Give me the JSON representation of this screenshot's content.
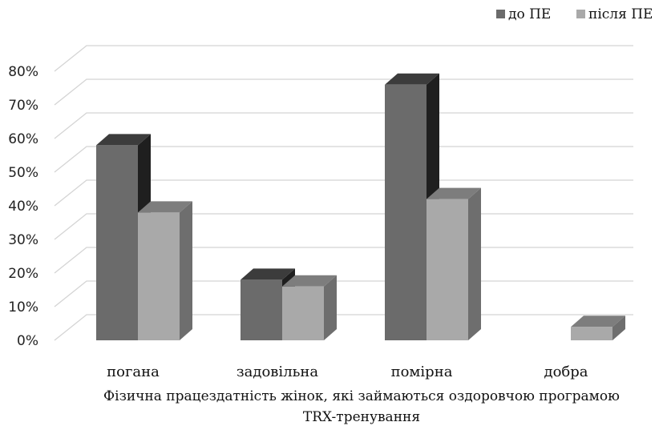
{
  "chart_data": {
    "type": "bar",
    "style": "3d-clustered",
    "categories": [
      "погана",
      "задовільна",
      "помірна",
      "добра"
    ],
    "series": [
      {
        "name": "до ПЕ",
        "values": [
          58,
          18,
          76,
          0
        ],
        "color": "#6b6b6b",
        "top_color": "#3c3c3c",
        "side_color": "#1f1f1f"
      },
      {
        "name": "після ПЕ",
        "values": [
          38,
          16,
          42,
          4
        ],
        "color": "#a9a9a9",
        "top_color": "#7d7d7d",
        "side_color": "#6e6e6e"
      }
    ],
    "ylim": [
      0,
      80
    ],
    "yticks": [
      0,
      10,
      20,
      30,
      40,
      50,
      60,
      70,
      80
    ],
    "ytick_labels": [
      "0%",
      "10%",
      "20%",
      "30%",
      "40%",
      "50%",
      "60%",
      "70%",
      "80%"
    ],
    "xlabel_lines": [
      "Фізична працездатність жінок, які займаються оздоровчою програмою",
      "TRX-тренування"
    ],
    "ylabel": "",
    "title": "",
    "grid": true,
    "legend_position": "top-right"
  }
}
